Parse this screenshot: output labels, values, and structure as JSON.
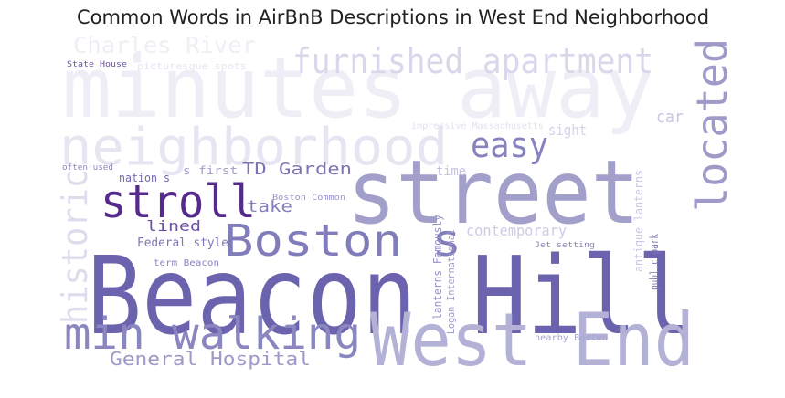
{
  "chart_data": {
    "type": "wordcloud",
    "title": "Common Words in AirBnB Descriptions in West End Neighborhood",
    "words": [
      "minutes away",
      "Beacon Hill",
      "street",
      "West End",
      "neighborhood",
      "furnished apartment",
      "located",
      "easy",
      "stroll",
      "Boston s",
      "min walking",
      "historic",
      "Charles River",
      "General Hospital",
      "TD Garden",
      "take",
      "lined",
      "Federal style",
      "contemporary",
      "time",
      "sight",
      "car",
      "public park",
      "antique lanterns",
      "State House",
      "Boston Common",
      "term Beacon",
      "nation s",
      "often used",
      "s first",
      "impressive Massachusetts",
      "picturesque spots",
      "Logan International",
      "lanterns Famously",
      "nearby Boston",
      "Jet setting"
    ]
  }
}
